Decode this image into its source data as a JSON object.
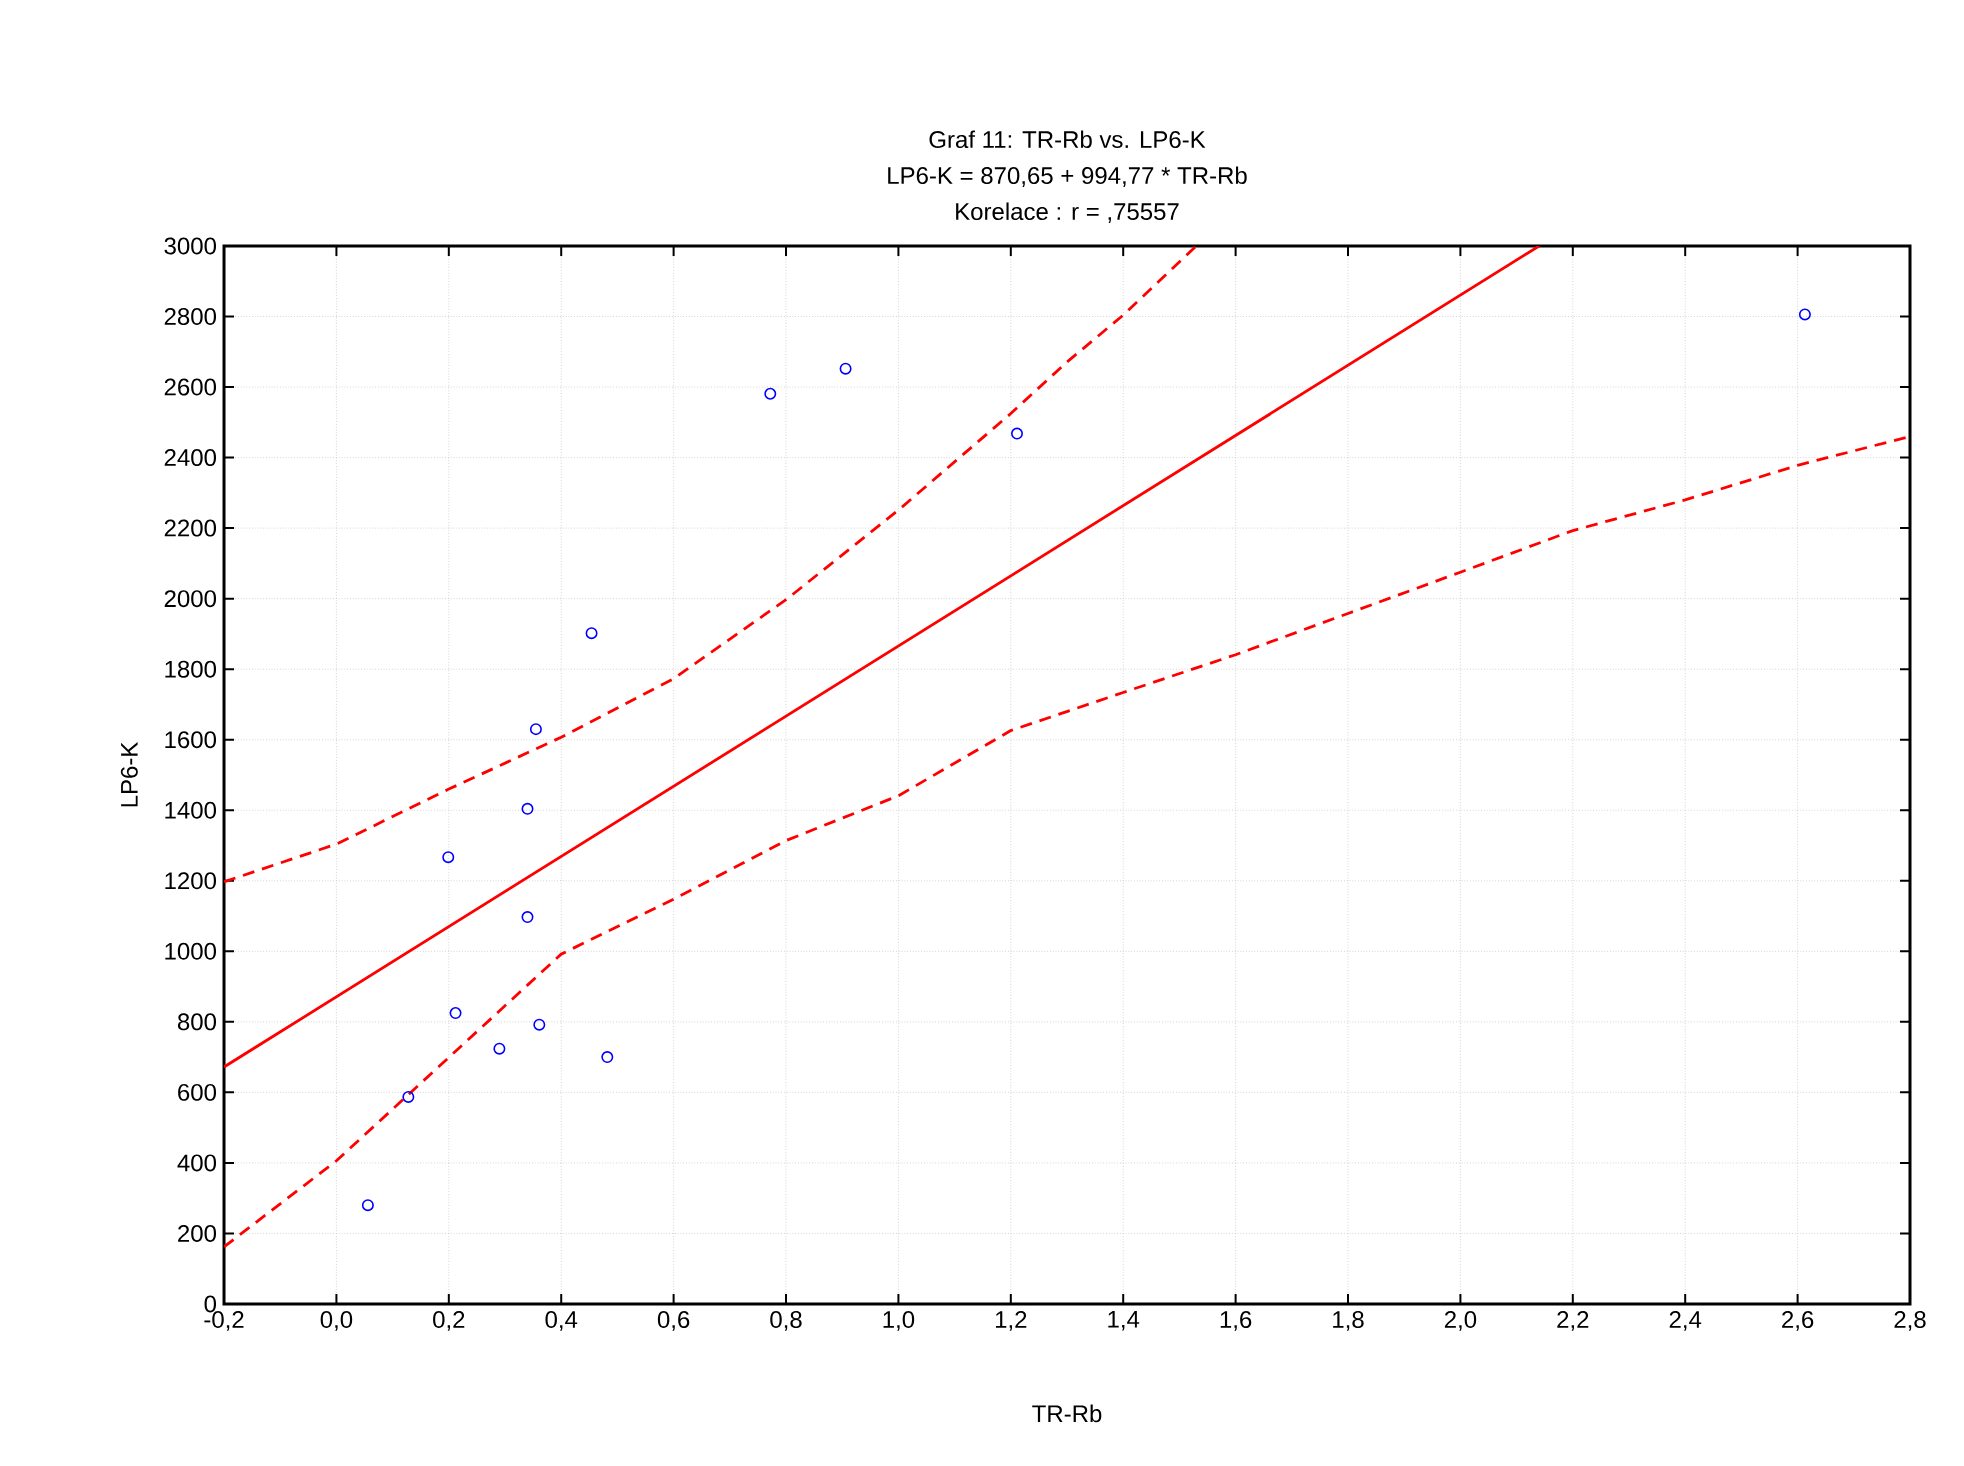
{
  "chart_data": {
    "type": "scatter",
    "title": "Graf 11: TR-Rb vs. LP6-K",
    "subtitle": "LP6-K = 870,65 + 994,77 * TR-Rb",
    "annotations": [
      "Korelace :    r = ,75557"
    ],
    "xlabel": "TR-Rb",
    "ylabel": "LP6-K",
    "xlim": [
      -0.2,
      2.8
    ],
    "ylim": [
      0,
      3000
    ],
    "xticks": [
      {
        "value": -0.2,
        "label": "-0,2"
      },
      {
        "value": 0,
        "label": "0,0"
      },
      {
        "value": 0.2,
        "label": "0,2"
      },
      {
        "value": 0.4,
        "label": "0,4"
      },
      {
        "value": 0.6,
        "label": "0,6"
      },
      {
        "value": 0.8,
        "label": "0,8"
      },
      {
        "value": 1.0,
        "label": "1,0"
      },
      {
        "value": 1.2,
        "label": "1,2"
      },
      {
        "value": 1.4,
        "label": "1,4"
      },
      {
        "value": 1.6,
        "label": "1,6"
      },
      {
        "value": 1.8,
        "label": "1,8"
      },
      {
        "value": 2.0,
        "label": "2,0"
      },
      {
        "value": 2.2,
        "label": "2,2"
      },
      {
        "value": 2.4,
        "label": "2,4"
      },
      {
        "value": 2.6,
        "label": "2,6"
      },
      {
        "value": 2.8,
        "label": "2,8"
      }
    ],
    "yticks": [
      0,
      200,
      400,
      600,
      800,
      1000,
      1200,
      1400,
      1600,
      1800,
      2000,
      2200,
      2400,
      2600,
      2800,
      3000
    ],
    "grid": true,
    "series": [
      {
        "marker": "circle",
        "color": "#0000ff",
        "x": [
          0.056,
          0.128,
          0.199,
          0.212,
          0.29,
          0.34,
          0.34,
          0.355,
          0.361,
          0.454,
          0.482,
          0.772,
          0.906,
          1.211,
          2.613
        ],
        "values": [
          280,
          587,
          1267,
          825,
          724,
          1404,
          1097,
          1630,
          792,
          1902,
          700,
          2581,
          2652,
          2468,
          2806
        ]
      },
      {
        "type": "line",
        "line_style": "solid",
        "color": "#ff0000",
        "x": [
          -0.2,
          2.14
        ],
        "values": [
          672,
          3000
        ]
      },
      {
        "type": "line",
        "line_style": "dashed",
        "color": "#ff0000",
        "x": [
          -0.2,
          0.0,
          0.2,
          0.4,
          0.6,
          0.8,
          1.0,
          1.2,
          1.3,
          1.4,
          1.53
        ],
        "values": [
          1197,
          1304,
          1460,
          1607,
          1773,
          1997,
          2251,
          2525,
          2671,
          2804,
          3000
        ]
      },
      {
        "type": "line",
        "line_style": "dashed",
        "color": "#ff0000",
        "x": [
          -0.2,
          0.0,
          0.2,
          0.4,
          0.6,
          0.8,
          1.0,
          1.2,
          1.4,
          1.6,
          1.8,
          2.0,
          2.2,
          2.4,
          2.6,
          2.8
        ],
        "values": [
          162,
          406,
          699,
          992,
          1148,
          1314,
          1441,
          1626,
          1734,
          1841,
          1958,
          2075,
          2193,
          2280,
          2378,
          2460
        ]
      }
    ]
  }
}
